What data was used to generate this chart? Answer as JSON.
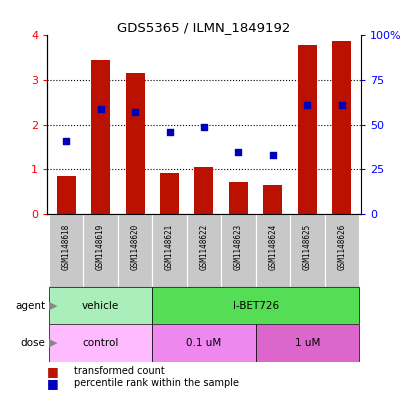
{
  "title": "GDS5365 / ILMN_1849192",
  "samples": [
    "GSM1148618",
    "GSM1148619",
    "GSM1148620",
    "GSM1148621",
    "GSM1148622",
    "GSM1148623",
    "GSM1148624",
    "GSM1148625",
    "GSM1148626"
  ],
  "red_values": [
    0.85,
    3.45,
    3.15,
    0.92,
    1.05,
    0.72,
    0.65,
    3.78,
    3.88
  ],
  "blue_pct": [
    41,
    59,
    57,
    46,
    49,
    35,
    33,
    61,
    61
  ],
  "ylim_left": [
    0,
    4
  ],
  "ylim_right": [
    0,
    100
  ],
  "yticks_left": [
    0,
    1,
    2,
    3,
    4
  ],
  "yticks_right": [
    0,
    25,
    50,
    75,
    100
  ],
  "ytick_labels_right": [
    "0",
    "25",
    "50",
    "75",
    "100%"
  ],
  "agent_groups": [
    {
      "label": "vehicle",
      "start": 0,
      "end": 3,
      "color": "#aaeebb"
    },
    {
      "label": "I-BET726",
      "start": 3,
      "end": 9,
      "color": "#55dd55"
    }
  ],
  "dose_groups": [
    {
      "label": "control",
      "start": 0,
      "end": 3,
      "color": "#ffbbff"
    },
    {
      "label": "0.1 uM",
      "start": 3,
      "end": 6,
      "color": "#ee88ee"
    },
    {
      "label": "1 uM",
      "start": 6,
      "end": 9,
      "color": "#dd66cc"
    }
  ],
  "bar_color": "#BB1100",
  "dot_color": "#0000BB",
  "sample_box_color": "#C8C8C8",
  "bar_width": 0.55
}
